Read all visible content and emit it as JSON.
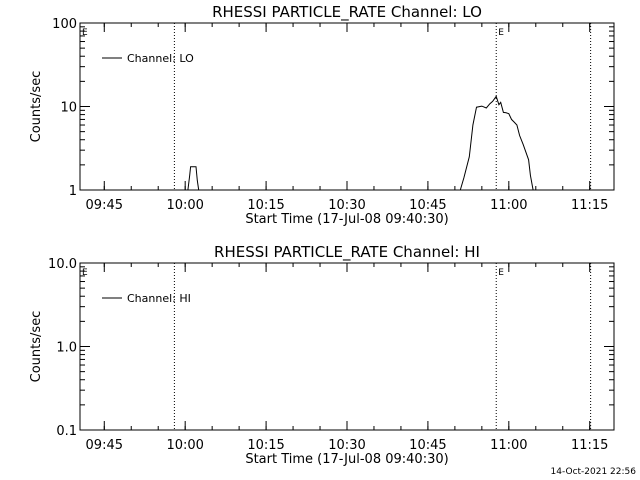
{
  "chart_data": [
    {
      "type": "line",
      "title": "RHESSI PARTICLE_RATE Channel: LO",
      "xlabel": "Start Time (17-Jul-08 09:40:30)",
      "ylabel": "Counts/sec",
      "yscale": "log",
      "ylim": [
        1,
        100
      ],
      "xlim": [
        "09:40:30",
        "11:19:30"
      ],
      "xticks": [
        "09:45",
        "10:00",
        "10:15",
        "10:30",
        "10:45",
        "11:00",
        "11:15"
      ],
      "yticks": [
        "1",
        "10",
        "100"
      ],
      "legend": {
        "label": "Channel: LO",
        "position": "top-left"
      },
      "event_lines": [
        "09:58:00",
        "10:57:40",
        "11:15:10"
      ],
      "event_labels": [
        {
          "text": "E",
          "at": "09:40:30"
        },
        {
          "text": "E",
          "at": "10:57:40"
        }
      ],
      "series": [
        {
          "name": "Channel: LO",
          "segments": [
            {
              "x": [
                "10:00:30",
                "10:00:50",
                "10:01:00",
                "10:02:00",
                "10:02:15",
                "10:02:30"
              ],
              "y": [
                1,
                1.5,
                1.9,
                1.9,
                1.3,
                1
              ]
            },
            {
              "x": [
                "10:51:00",
                "10:51:40",
                "10:52:40",
                "10:53:20",
                "10:54:00",
                "10:55:00",
                "10:55:50",
                "10:56:30",
                "10:57:00",
                "10:57:40",
                "10:58:10",
                "10:58:30",
                "10:59:00",
                "10:59:30",
                "11:00:00",
                "11:00:30",
                "11:01:00",
                "11:01:30",
                "11:02:00",
                "11:02:40",
                "11:03:40",
                "11:04:00",
                "11:04:30"
              ],
              "y": [
                1,
                1.4,
                2.5,
                6,
                9.8,
                10.1,
                9.6,
                10.8,
                11.5,
                13.2,
                10.5,
                11.2,
                8.5,
                8.4,
                8.2,
                7.0,
                6.5,
                6.0,
                4.5,
                3.5,
                2.3,
                1.5,
                1
              ]
            }
          ]
        }
      ]
    },
    {
      "type": "line",
      "title": "RHESSI PARTICLE_RATE Channel: HI",
      "xlabel": "Start Time (17-Jul-08 09:40:30)",
      "ylabel": "Counts/sec",
      "yscale": "log",
      "ylim": [
        0.1,
        10
      ],
      "xlim": [
        "09:40:30",
        "11:19:30"
      ],
      "xticks": [
        "09:45",
        "10:00",
        "10:15",
        "10:30",
        "10:45",
        "11:00",
        "11:15"
      ],
      "yticks": [
        "0.1",
        "1.0",
        "10.0"
      ],
      "legend": {
        "label": "Channel: HI",
        "position": "top-left"
      },
      "event_lines": [
        "09:58:00",
        "10:57:40",
        "11:15:10"
      ],
      "event_labels": [
        {
          "text": "E",
          "at": "09:40:30"
        },
        {
          "text": "E",
          "at": "10:57:40"
        }
      ],
      "series": [
        {
          "name": "Channel: HI",
          "segments": []
        }
      ]
    }
  ],
  "footer": {
    "timestamp": "14-Oct-2021 22:56"
  }
}
